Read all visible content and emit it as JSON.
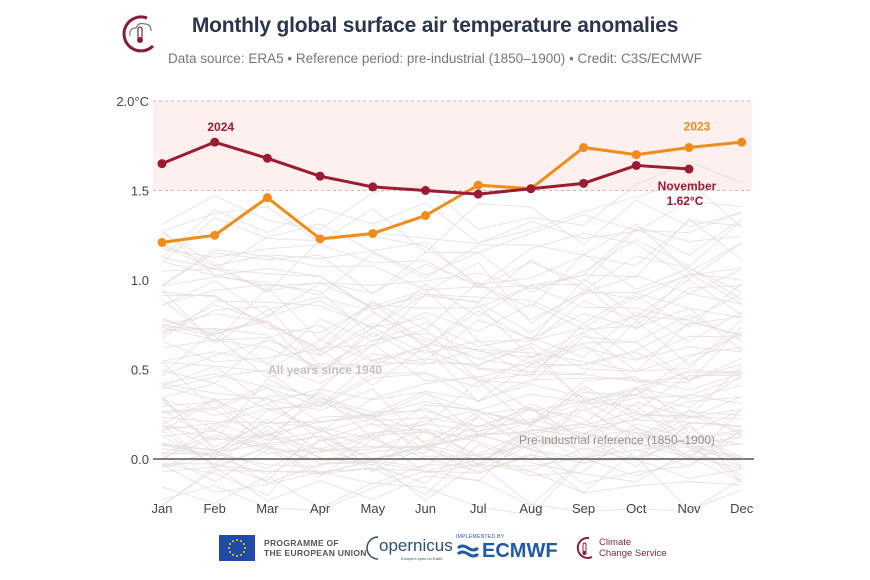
{
  "header": {
    "title": "Monthly global surface air temperature anomalies",
    "subtitle": "Data source: ERA5 • Reference period: pre-industrial (1850–1900) • Credit: C3S/ECMWF",
    "logo_icon": "thermometer-cloud-icon"
  },
  "chart_data": {
    "type": "line",
    "title": "Monthly global surface air temperature anomalies",
    "xlabel": "",
    "ylabel": "",
    "categories": [
      "Jan",
      "Feb",
      "Mar",
      "Apr",
      "May",
      "Jun",
      "Jul",
      "Aug",
      "Sep",
      "Oct",
      "Nov",
      "Dec"
    ],
    "y_ticks": [
      {
        "value": 0.0,
        "label": "0.0"
      },
      {
        "value": 0.5,
        "label": "0.5"
      },
      {
        "value": 1.0,
        "label": "1.0"
      },
      {
        "value": 1.5,
        "label": "1.5"
      },
      {
        "value": 2.0,
        "label": "2.0°C"
      }
    ],
    "ylim": [
      0,
      2.0
    ],
    "grid": "dashed lines at 1.5 and 2.0",
    "highlight_band": {
      "from": 1.5,
      "to": 2.0,
      "color": "#fdf0ee"
    },
    "series": [
      {
        "name": "2024",
        "color": "#9b1c31",
        "values": [
          1.65,
          1.77,
          1.68,
          1.58,
          1.52,
          1.5,
          1.48,
          1.51,
          1.54,
          1.64,
          1.62
        ]
      },
      {
        "name": "2023",
        "color": "#f08c1a",
        "values": [
          1.21,
          1.25,
          1.46,
          1.23,
          1.26,
          1.36,
          1.53,
          1.51,
          1.74,
          1.7,
          1.74,
          1.77
        ]
      }
    ],
    "background_series": {
      "label": "All years since 1940",
      "color": "#e6dcdb",
      "approx_range": [
        -0.1,
        1.5
      ],
      "count": 84
    },
    "annotations": [
      {
        "text": "2024",
        "series": "2024",
        "month": "Feb"
      },
      {
        "text": "2023",
        "series": "2023",
        "month": "Nov"
      },
      {
        "text": "November",
        "month": "Nov"
      },
      {
        "text": "1.62°C",
        "month": "Nov"
      },
      {
        "text": "All years since 1940"
      },
      {
        "text": "Pre-industrial reference (1850–1900)"
      }
    ]
  },
  "footer": {
    "eu_line1": "PROGRAMME OF",
    "eu_line2": "THE EUROPEAN UNION",
    "copernicus": "opernicus",
    "copernicus_tagline": "Europe's eyes on Earth",
    "ecmwf_small": "IMPLEMENTED BY",
    "ecmwf": "ECMWF",
    "c3s_line1": "Climate",
    "c3s_line2": "Change Service"
  }
}
